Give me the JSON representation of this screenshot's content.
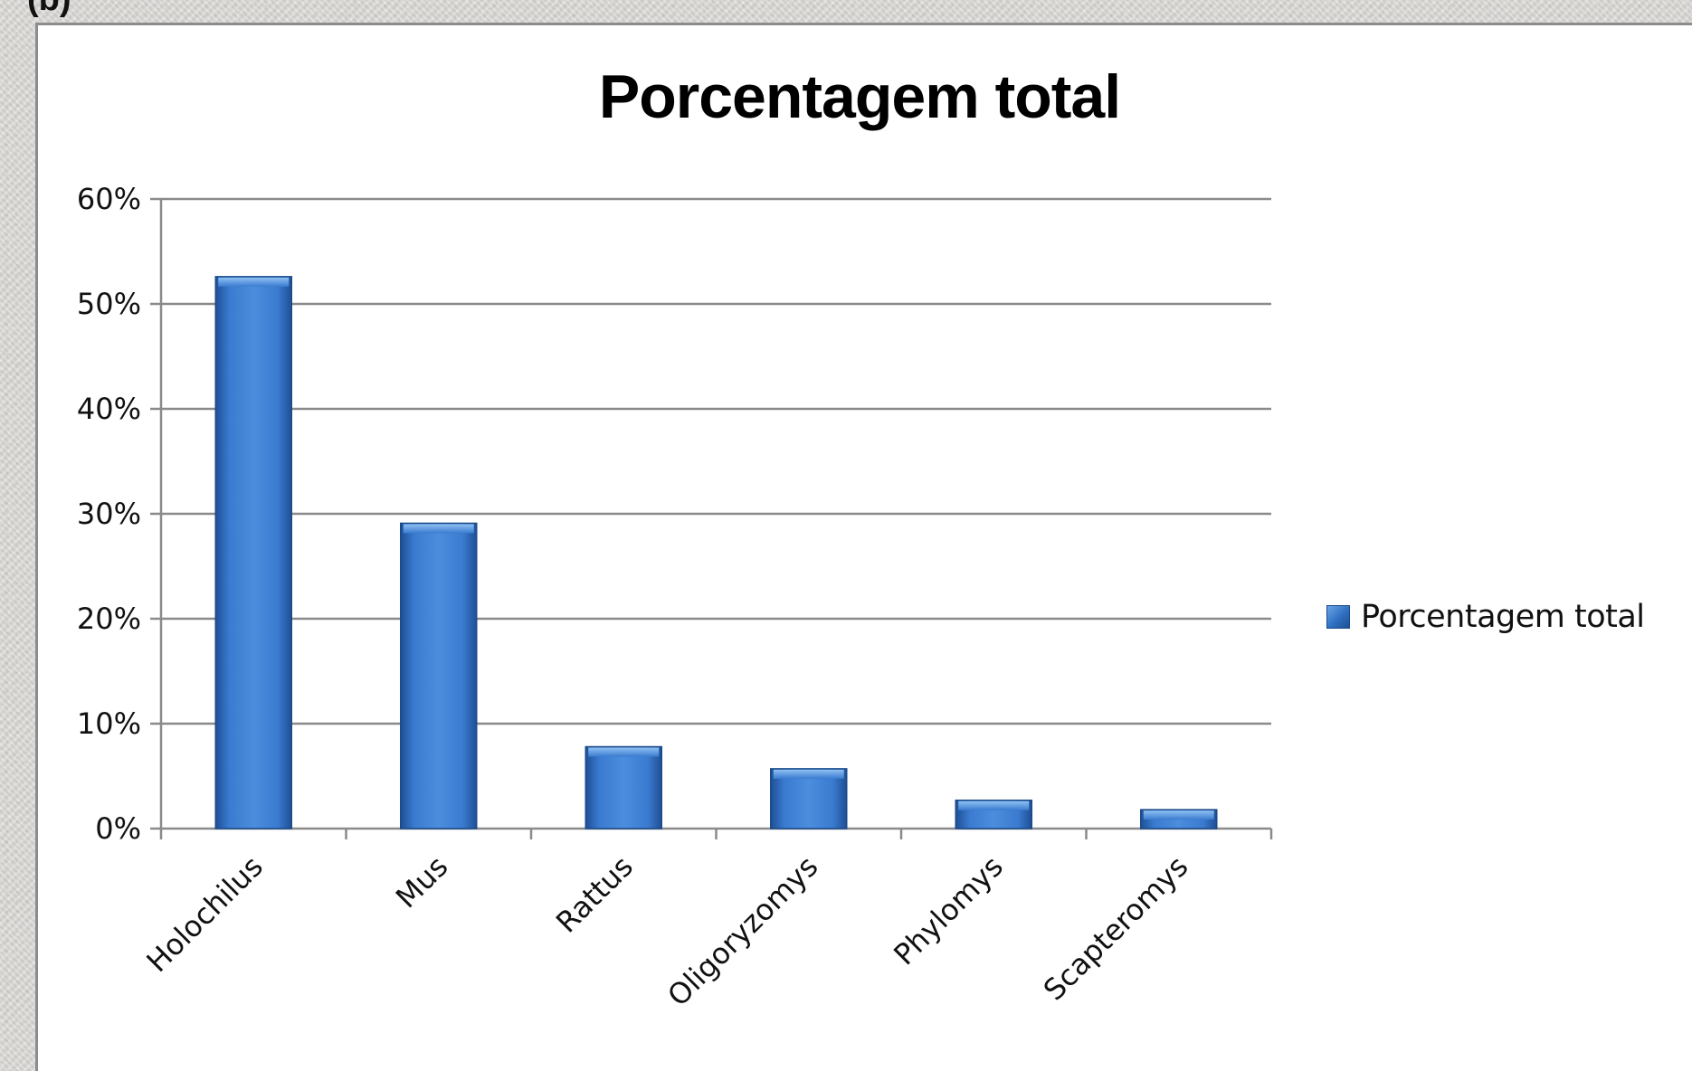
{
  "top_caption": "(b)",
  "chart_data": {
    "type": "bar",
    "title": "Porcentagem total",
    "xlabel": "",
    "ylabel": "",
    "ylim": [
      0,
      60
    ],
    "yticks": [
      "0%",
      "10%",
      "20%",
      "30%",
      "40%",
      "50%",
      "60%"
    ],
    "categories": [
      "Holochilus",
      "Mus",
      "Rattus",
      "Oligoryzomys",
      "Phylomys",
      "Scapteromys"
    ],
    "series": [
      {
        "name": "Porcentagem total",
        "values": [
          52.6,
          29.1,
          7.8,
          5.7,
          2.7,
          1.8
        ]
      }
    ],
    "grid": true,
    "legend": "right",
    "colors": {
      "bar_light": "#6fa9ea",
      "bar_mid": "#3a7bd0",
      "bar_dark": "#1f4f94",
      "gridline": "#8a8a8a"
    }
  }
}
